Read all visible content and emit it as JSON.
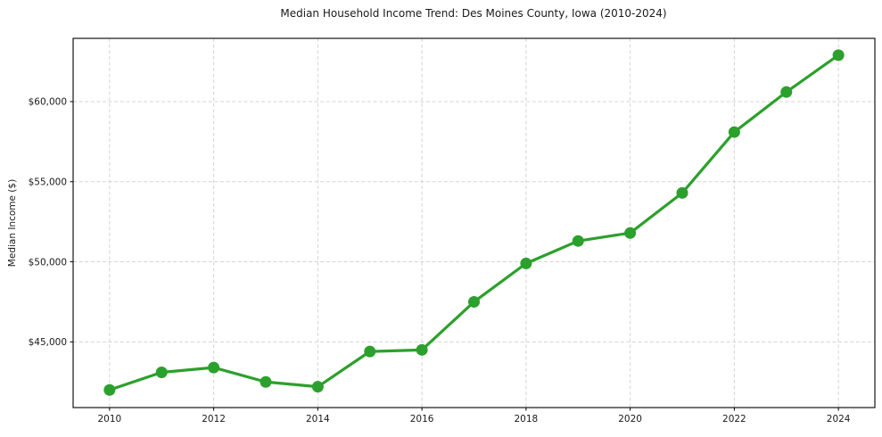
{
  "figure": {
    "background_color": "#ffffff"
  },
  "chart_data": {
    "type": "line",
    "title": "Median Household Income Trend: Des Moines County, Iowa (2010-2024)",
    "xlabel": "",
    "ylabel": "Median Income ($)",
    "x": [
      2010,
      2011,
      2012,
      2013,
      2014,
      2015,
      2016,
      2017,
      2018,
      2019,
      2020,
      2021,
      2022,
      2023,
      2024
    ],
    "values": [
      42000,
      43100,
      43400,
      42500,
      42200,
      44400,
      44500,
      47500,
      49900,
      51300,
      51800,
      54300,
      58100,
      60600,
      62900
    ],
    "xlim": [
      2009.3,
      2024.7
    ],
    "ylim": [
      40900,
      63950
    ],
    "x_ticks": [
      {
        "value": 2010,
        "label": "2010"
      },
      {
        "value": 2012,
        "label": "2012"
      },
      {
        "value": 2014,
        "label": "2014"
      },
      {
        "value": 2016,
        "label": "2016"
      },
      {
        "value": 2018,
        "label": "2018"
      },
      {
        "value": 2020,
        "label": "2020"
      },
      {
        "value": 2022,
        "label": "2022"
      },
      {
        "value": 2024,
        "label": "2024"
      }
    ],
    "y_ticks": [
      {
        "value": 45000,
        "label": "$45,000"
      },
      {
        "value": 50000,
        "label": "$50,000"
      },
      {
        "value": 55000,
        "label": "$55,000"
      },
      {
        "value": 60000,
        "label": "$60,000"
      }
    ],
    "grid": true,
    "grid_style": "dashed",
    "legend_position": "none",
    "colors": {
      "line": "#2ca02c",
      "marker": "#2ca02c",
      "grid": "#d4d4d4",
      "spine": "#000000",
      "text": "#1a1a1a"
    }
  }
}
